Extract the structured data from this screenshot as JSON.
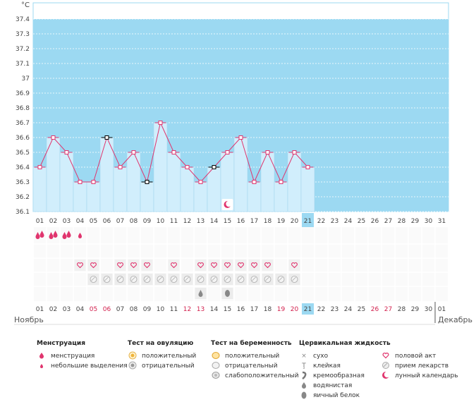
{
  "chart_data": {
    "type": "line",
    "ylabel": "°C",
    "ylim": [
      36.1,
      37.4
    ],
    "yticks": [
      "37.4",
      "37.3",
      "37.2",
      "37.1",
      "37",
      "36.9",
      "36.8",
      "36.7",
      "36.6",
      "36.5",
      "36.4",
      "36.3",
      "36.2",
      "36.1"
    ],
    "days": [
      "01",
      "02",
      "03",
      "04",
      "05",
      "06",
      "07",
      "08",
      "09",
      "10",
      "11",
      "12",
      "13",
      "14",
      "15",
      "16",
      "17",
      "18",
      "19",
      "20",
      "21",
      "22",
      "23",
      "24",
      "25",
      "26",
      "27",
      "28",
      "29",
      "30",
      "31"
    ],
    "temperature": [
      36.4,
      36.6,
      36.5,
      36.3,
      36.3,
      36.6,
      36.4,
      36.5,
      36.3,
      36.7,
      36.5,
      36.4,
      36.3,
      36.4,
      36.5,
      36.6,
      36.3,
      36.5,
      36.3,
      36.5,
      36.4
    ],
    "marked_days": [
      "06",
      "09",
      "14"
    ],
    "current_day": "21",
    "moon_days": [
      "15"
    ],
    "menstruation_heavy_days": [
      "01",
      "02",
      "03"
    ],
    "menstruation_light_days": [
      "04"
    ],
    "intercourse_days": [
      "04",
      "05",
      "07",
      "08",
      "09",
      "11",
      "13",
      "14",
      "15",
      "16",
      "17",
      "18",
      "20"
    ],
    "medication_days": [
      "05",
      "06",
      "07",
      "08",
      "09",
      "10",
      "11",
      "12",
      "13",
      "14",
      "15",
      "16",
      "17",
      "18",
      "19",
      "20"
    ],
    "egg_white_days": [
      "13",
      "15"
    ],
    "bottom_days": [
      "01",
      "02",
      "03",
      "04",
      "05",
      "06",
      "07",
      "08",
      "09",
      "10",
      "11",
      "12",
      "13",
      "14",
      "15",
      "16",
      "17",
      "18",
      "19",
      "20",
      "21",
      "22",
      "23",
      "24",
      "25",
      "26",
      "27",
      "28",
      "29",
      "30",
      "01"
    ],
    "red_days": [
      "05",
      "06",
      "12",
      "13",
      "19",
      "20",
      "26",
      "27"
    ],
    "month_left": "Ноябрь",
    "month_right": "Декабрь"
  },
  "legend": {
    "menstruation": {
      "title": "Менструация",
      "items": [
        "менструация",
        "небольшие выделения"
      ]
    },
    "ovulation": {
      "title": "Тест на овуляцию",
      "items": [
        "положительный",
        "отрицательный"
      ]
    },
    "pregnancy": {
      "title": "Тест на беременность",
      "items": [
        "положительный",
        "отрицательный",
        "слабоположительный"
      ]
    },
    "cervical": {
      "title": "Цервикальная жидкость",
      "items": [
        "сухо",
        "клейкая",
        "кремообразная",
        "водянистая",
        "яичный белок"
      ]
    },
    "other": {
      "items": [
        "половой акт",
        "прием лекарств",
        "лунный календарь"
      ]
    }
  },
  "colors": {
    "sky": "#9cd9f2",
    "bar": "#d1eefc",
    "bar_edge": "#a3d7ee",
    "line": "#e0356e",
    "accent": "#e0356e",
    "red": "#d21f4c"
  }
}
